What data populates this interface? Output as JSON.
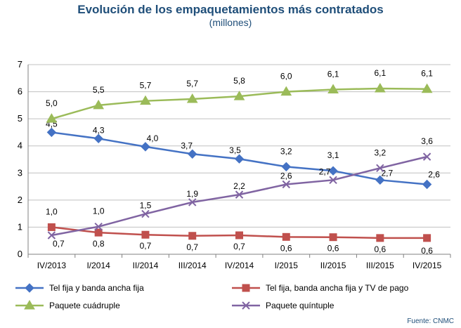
{
  "chart_data": {
    "type": "line",
    "title": "Evolución de los empaquetamientos más contratados",
    "subtitle": "(millones)",
    "xlabel": "",
    "ylabel": "",
    "ylim": [
      0,
      7
    ],
    "yticks": [
      "0",
      "1",
      "2",
      "3",
      "4",
      "5",
      "6",
      "7"
    ],
    "categories": [
      "IV/2013",
      "I/2014",
      "II/2014",
      "III/2014",
      "IV/2014",
      "I/2015",
      "II/2015",
      "III/2015",
      "IV/2015"
    ],
    "grid": true,
    "legend_position": "bottom",
    "series": [
      {
        "name": "Tel fija y banda ancha fija",
        "color": "#4472c4",
        "marker": "diamond",
        "values": [
          4.5,
          4.27,
          3.97,
          3.7,
          3.52,
          3.23,
          3.08,
          2.74,
          2.58
        ],
        "labels": [
          "4,5",
          "4,3",
          "4,0",
          "3,7",
          "3,5",
          "3,2",
          "3,1",
          "2,7",
          "2,6"
        ]
      },
      {
        "name": "Tel fija, banda ancha fija y TV de pago",
        "color": "#c0504d",
        "marker": "square",
        "values": [
          1.0,
          0.8,
          0.72,
          0.68,
          0.7,
          0.64,
          0.63,
          0.6,
          0.6
        ],
        "labels": [
          "1,0",
          "0,8",
          "0,7",
          "0,7",
          "0,7",
          "0,6",
          "0,6",
          "0,6",
          "0,6"
        ]
      },
      {
        "name": "Paquete cuádruple",
        "color": "#9bbb59",
        "marker": "triangle",
        "values": [
          5.0,
          5.5,
          5.66,
          5.73,
          5.83,
          6.0,
          6.08,
          6.12,
          6.1
        ],
        "labels": [
          "5,0",
          "5,5",
          "5,7",
          "5,7",
          "5,8",
          "6,0",
          "6,1",
          "6,1",
          "6,1"
        ]
      },
      {
        "name": "Paquete quíntuple",
        "color": "#8064a2",
        "marker": "x",
        "values": [
          0.7,
          1.02,
          1.49,
          1.92,
          2.2,
          2.58,
          2.74,
          3.18,
          3.6
        ],
        "labels": [
          "0,7",
          "1,0",
          "1,5",
          "1,9",
          "2,2",
          "2,6",
          "2,7",
          "3,2",
          "3,6"
        ]
      }
    ]
  },
  "source": "Fuente: CNMC"
}
